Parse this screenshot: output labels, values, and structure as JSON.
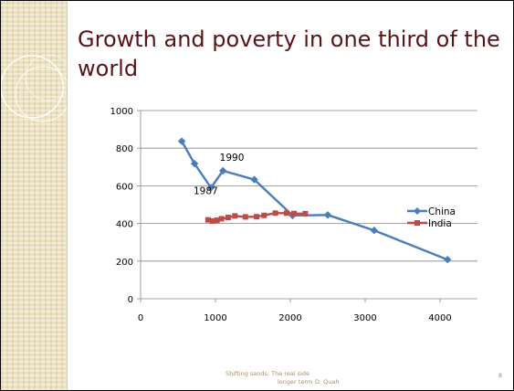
{
  "slide": {
    "title": "Growth and poverty in one third of the world",
    "footer_line1": "Shifting sands: The real side",
    "footer_line2": "longer term",
    "footer_author": "D. Quah",
    "page_number": "8"
  },
  "colors": {
    "china": "#4a7ebb",
    "india": "#be4b48",
    "title": "#5a1417",
    "grid": "#868686"
  },
  "chart_data": {
    "type": "line",
    "xlim": [
      0,
      4500
    ],
    "ylim": [
      0,
      1000
    ],
    "x_ticks": [
      0,
      1000,
      2000,
      3000,
      4000
    ],
    "y_ticks": [
      0,
      200,
      400,
      600,
      800,
      1000
    ],
    "grid": "horizontal",
    "legend_position": "right",
    "series": [
      {
        "name": "China",
        "color": "#4a7ebb",
        "marker": "diamond",
        "x": [
          550,
          720,
          940,
          1100,
          1520,
          2030,
          2500,
          3120,
          4100
        ],
        "y": [
          837,
          718,
          590,
          680,
          633,
          442,
          445,
          363,
          208
        ]
      },
      {
        "name": "India",
        "color": "#be4b48",
        "marker": "square",
        "x": [
          900,
          960,
          1020,
          1080,
          1170,
          1260,
          1400,
          1550,
          1650,
          1800,
          1950,
          2050,
          2200
        ],
        "y": [
          419,
          413,
          417,
          425,
          432,
          440,
          435,
          436,
          443,
          455,
          455,
          453,
          452
        ]
      }
    ],
    "annotations": [
      {
        "text": "1990",
        "x": 1220,
        "y": 733
      },
      {
        "text": "1987",
        "x": 870,
        "y": 556
      }
    ]
  }
}
